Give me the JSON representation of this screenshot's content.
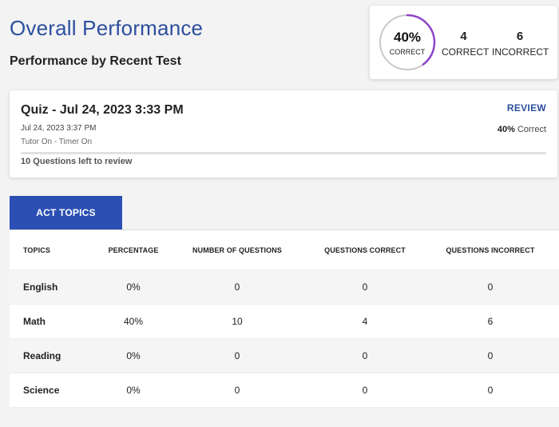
{
  "header": {
    "title": "Overall Performance",
    "subtitle": "Performance by Recent Test"
  },
  "summary": {
    "percent_text": "40%",
    "percent_value": 40,
    "percent_label": "CORRECT",
    "correct_count": "4",
    "correct_label": "CORRECT",
    "incorrect_count": "6",
    "incorrect_label": "INCORRECT",
    "ring_color": "#8e44c8",
    "track_color": "#c8c8c8"
  },
  "quiz": {
    "title": "Quiz - Jul 24, 2023 3:33 PM",
    "date": "Jul 24, 2023 3:37 PM",
    "mode": "Tutor On - Timer On",
    "review_label": "REVIEW",
    "correct_percent": "40%",
    "correct_word": "Correct",
    "review_progress": 0,
    "left_to_review": "10 Questions left to review"
  },
  "tabs": [
    {
      "label": "ACT TOPICS",
      "active": true
    }
  ],
  "table": {
    "columns": [
      "TOPICS",
      "PERCENTAGE",
      "NUMBER OF QUESTIONS",
      "QUESTIONS CORRECT",
      "QUESTIONS INCORRECT"
    ],
    "rows": [
      [
        "English",
        "0%",
        "0",
        "0",
        "0"
      ],
      [
        "Math",
        "40%",
        "10",
        "4",
        "6"
      ],
      [
        "Reading",
        "0%",
        "0",
        "0",
        "0"
      ],
      [
        "Science",
        "0%",
        "0",
        "0",
        "0"
      ]
    ]
  }
}
